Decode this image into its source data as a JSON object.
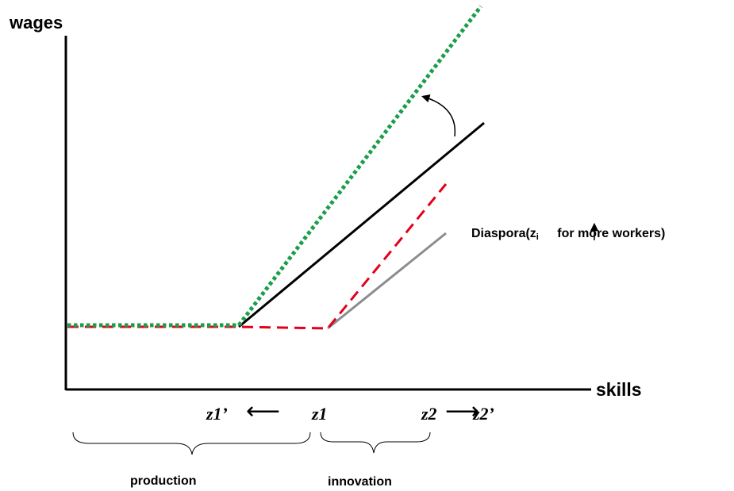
{
  "axes": {
    "y_label": "wages",
    "x_label": "skills"
  },
  "markers": {
    "z1_prime": "z1’",
    "z1": "z1",
    "z2": "z2",
    "z2_prime": "z2’",
    "left_arrow": "⟵",
    "right_arrow": "⟶"
  },
  "annotation": {
    "prefix": "Diaspora(z",
    "subscript": "i",
    "suffix": " for more workers)"
  },
  "braces": {
    "production": "production",
    "innovation": "innovation"
  },
  "colors": {
    "axis": "#000000",
    "black_line": "#000000",
    "red_dashed": "#e3001b",
    "gray_line": "#8c8c8c",
    "green_dotted": "#1a9e4a"
  }
}
